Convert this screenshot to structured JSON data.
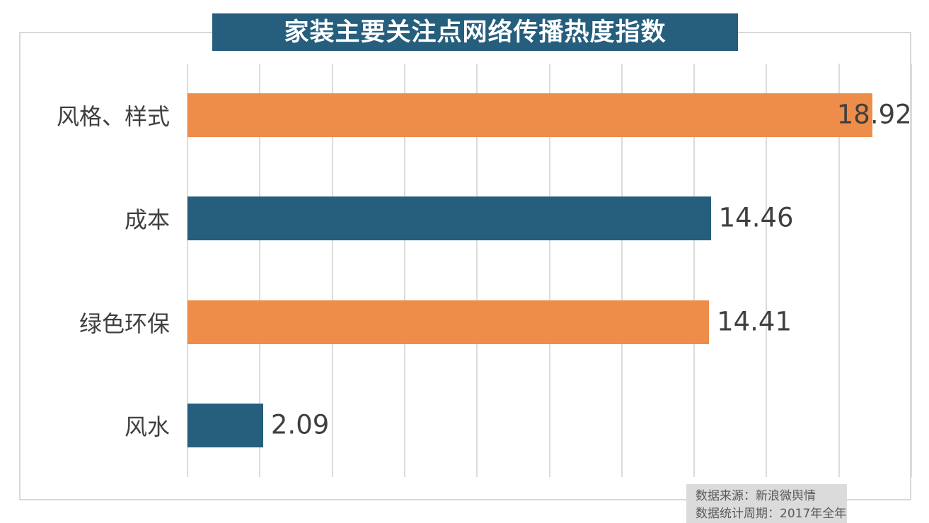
{
  "title": "家装主要关注点网络传播热度指数",
  "chart_data": {
    "type": "bar",
    "orientation": "horizontal",
    "title": "家装主要关注点网络传播热度指数",
    "categories": [
      "风格、样式",
      "成本",
      "绿色环保",
      "风水"
    ],
    "values": [
      18.92,
      14.46,
      14.41,
      2.09
    ],
    "value_labels": [
      "18.92",
      "14.46",
      "14.41",
      "2.09"
    ],
    "xlim": [
      0,
      20
    ],
    "gridline_step": 2,
    "grid": "vertical-gridlines-only",
    "legend": "none",
    "axis_tick_labels": "none",
    "bar_colors": [
      "#EE8C4A",
      "#265E7D",
      "#EE8C4A",
      "#265E7D"
    ]
  },
  "footer": {
    "lines": [
      "数据来源：新浪微舆情",
      "数据统计周期：2017年全年"
    ]
  },
  "colors": {
    "title_bg": "#265E7D",
    "title_text": "#FFFFFF",
    "orange": "#EE8C4A",
    "teal": "#265E7D",
    "label_text": "#3F3F3F",
    "gridline": "#DCDCDC",
    "frame_border": "#D8D8D8",
    "footer_bg": "#DBDBDB",
    "footer_text": "#595959",
    "background": "#FFFFFF"
  }
}
